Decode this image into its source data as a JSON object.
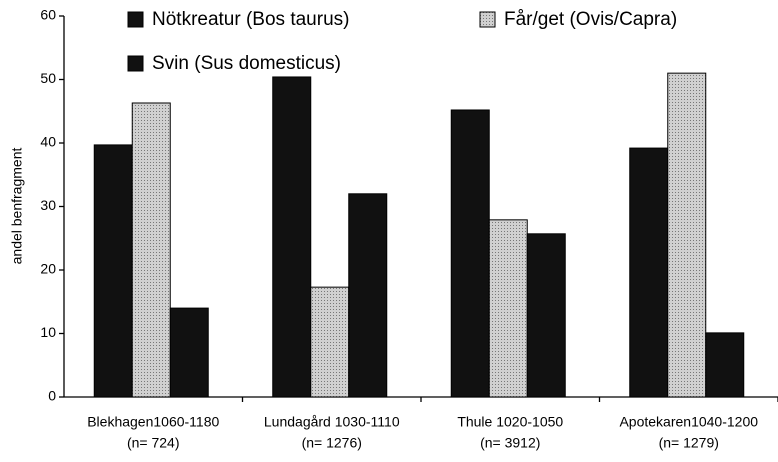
{
  "chart_data": {
    "type": "bar",
    "ylabel": "andel benfragment",
    "categories": [
      [
        "Blekhagen1060-1180",
        "(n= 724)"
      ],
      [
        "Lundagård 1030-1110",
        "(n= 1276)"
      ],
      [
        "Thule 1020-1050",
        "(n= 3912)"
      ],
      [
        "Apotekaren1040-1200",
        "(n= 1279)"
      ]
    ],
    "series": [
      {
        "name": "Nötkreatur (Bos taurus)",
        "color": "#111111",
        "values": [
          39.7,
          50.4,
          45.2,
          39.2
        ]
      },
      {
        "name": "Får/get (Ovis/Capra)",
        "color": "#bdbdbd",
        "values": [
          46.3,
          17.3,
          27.9,
          51
        ]
      },
      {
        "name": "Svin (Sus domesticus)",
        "color": "#111111",
        "values": [
          14,
          32,
          25.7,
          10.1
        ]
      }
    ],
    "ylim": [
      0,
      60
    ],
    "yticks": [
      0,
      10,
      20,
      30,
      40,
      50,
      60
    ]
  }
}
